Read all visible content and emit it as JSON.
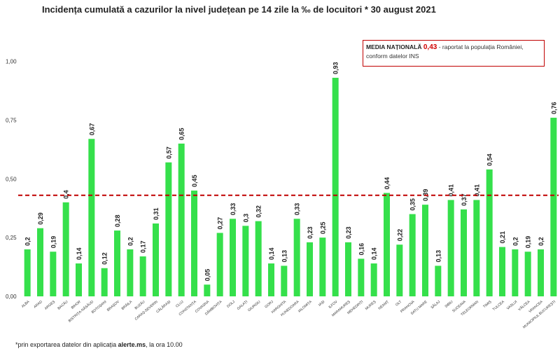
{
  "chart_data": {
    "type": "bar",
    "title": "Incidența cumulată a cazurilor la nivel județean pe 14 zile la ‰ de locuitori * 30 august 2021",
    "categories": [
      "ALBA",
      "ARAD",
      "ARGEȘ",
      "BACĂU",
      "BIHOR",
      "BISTRIȚA-NĂSĂUD",
      "BOTOȘANI",
      "BRAȘOV",
      "BRĂILA",
      "BUZĂU",
      "CARAȘ-SEVERIN",
      "CĂLĂRAȘI",
      "CLUJ",
      "CONSTANȚA",
      "COVASNA",
      "DÂMBOVIȚA",
      "DOLJ",
      "GALAȚI",
      "GIURGIU",
      "GORJ",
      "HARGHITA",
      "HUNEDOARA",
      "IALOMIȚA",
      "IAȘI",
      "ILFOV",
      "MARAMUREȘ",
      "MEHEDINȚI",
      "MUREȘ",
      "NEAMȚ",
      "OLT",
      "PRAHOVA",
      "SATU MARE",
      "SĂLAJ",
      "SIBIU",
      "SUCEAVA",
      "TELEORMAN",
      "TIMIȘ",
      "TULCEA",
      "VASLUI",
      "VÂLCEA",
      "VRANCEA",
      "MUNICIPIUL BUCUREȘTI"
    ],
    "values": [
      0.2,
      0.29,
      0.19,
      0.4,
      0.14,
      0.67,
      0.12,
      0.28,
      0.2,
      0.17,
      0.31,
      0.57,
      0.65,
      0.45,
      0.05,
      0.27,
      0.33,
      0.3,
      0.32,
      0.14,
      0.13,
      0.33,
      0.23,
      0.25,
      0.93,
      0.23,
      0.16,
      0.14,
      0.44,
      0.22,
      0.35,
      0.39,
      0.13,
      0.41,
      0.37,
      0.41,
      0.54,
      0.21,
      0.2,
      0.19,
      0.2,
      0.76
    ],
    "value_labels": [
      "0,2",
      "0,29",
      "0,19",
      "0,4",
      "0,14",
      "0,67",
      "0,12",
      "0,28",
      "0,2",
      "0,17",
      "0,31",
      "0,57",
      "0,65",
      "0,45",
      "0,05",
      "0,27",
      "0,33",
      "0,3",
      "0,32",
      "0,14",
      "0,13",
      "0,33",
      "0,23",
      "0,25",
      "0,93",
      "0,23",
      "0,16",
      "0,14",
      "0,44",
      "0,22",
      "0,35",
      "0,39",
      "0,13",
      "0,41",
      "0,37",
      "0,41",
      "0,54",
      "0,21",
      "0,2",
      "0,19",
      "0,2",
      "0,76"
    ],
    "color": "#35e04b",
    "ylim": [
      0,
      1.1
    ],
    "yticks": [
      {
        "value": 0,
        "label": "0,00"
      },
      {
        "value": 0.25,
        "label": "0,25"
      },
      {
        "value": 0.5,
        "label": "0,50"
      },
      {
        "value": 0.75,
        "label": "0,75"
      },
      {
        "value": 1,
        "label": "1,00"
      }
    ],
    "reference_line": {
      "value": 0.43,
      "label": "0,43",
      "color": "#c00000"
    },
    "annotation": {
      "title": "MEDIA NAȚIONALĂ",
      "text": "- raportat la populația României, conform datelor INS"
    },
    "footnote": {
      "before": "*prin exportarea datelor din aplicația",
      "bold": "alerte.ms",
      "after": ", la ora 10.00"
    }
  }
}
